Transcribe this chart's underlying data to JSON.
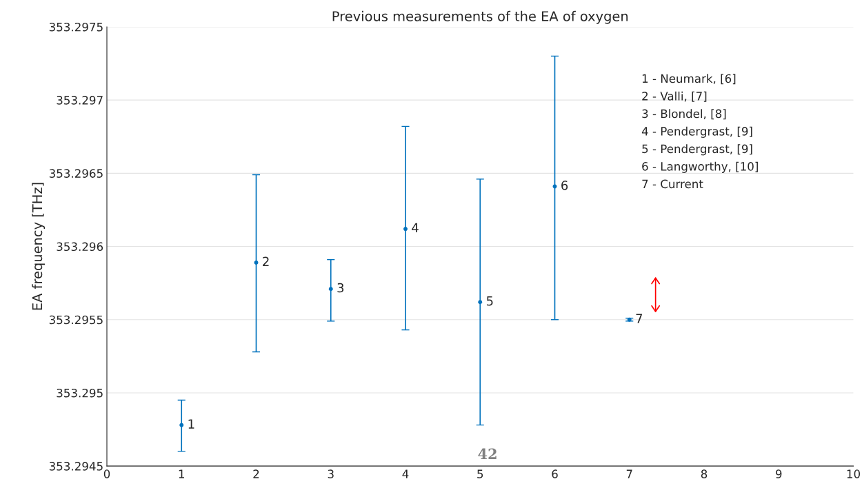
{
  "chart_data": {
    "type": "scatter",
    "title": "Previous measurements of the EA of oxygen",
    "ylabel": "EA frequency [THz]",
    "x": [
      1,
      2,
      3,
      4,
      5,
      6,
      7
    ],
    "series": [
      {
        "color": "#0072bd",
        "values": [
          353.29478,
          353.29589,
          353.29571,
          353.29612,
          353.29562,
          353.29641,
          353.2955
        ],
        "errors": [
          [
            353.2946,
            353.29495
          ],
          [
            353.29528,
            353.29649
          ],
          [
            353.29549,
            353.29591
          ],
          [
            353.29543,
            353.29682
          ],
          [
            353.29478,
            353.29646
          ],
          [
            353.2955,
            353.2973
          ],
          [
            353.29549,
            353.29551
          ]
        ]
      }
    ],
    "xlim": [
      0,
      10
    ],
    "xticks": [
      0,
      1,
      2,
      3,
      4,
      5,
      6,
      7,
      8,
      9,
      10
    ],
    "ylim": [
      353.2945,
      353.2975
    ],
    "yticks": [
      353.2945,
      353.295,
      353.2955,
      353.296,
      353.2965,
      353.297,
      353.2975
    ],
    "grid": "y",
    "marker": "circle",
    "annotations": [
      {
        "text": "1",
        "x": 1,
        "y": 353.29478
      },
      {
        "text": "2",
        "x": 2,
        "y": 353.29589
      },
      {
        "text": "3",
        "x": 3,
        "y": 353.29571
      },
      {
        "text": "4",
        "x": 4,
        "y": 353.29612
      },
      {
        "text": "5",
        "x": 5,
        "y": 353.29562
      },
      {
        "text": "6",
        "x": 6,
        "y": 353.29641
      },
      {
        "text": "7",
        "x": 7,
        "y": 353.2955
      },
      "1 - Neumark, [6]",
      "2 - Valli, [7]",
      "3 - Blondel, [8]",
      "4 - Pendergrast, [9]",
      "5 - Pendergrast, [9]",
      "6 - Langworthy, [10]",
      "7 - Current",
      "42"
    ]
  }
}
